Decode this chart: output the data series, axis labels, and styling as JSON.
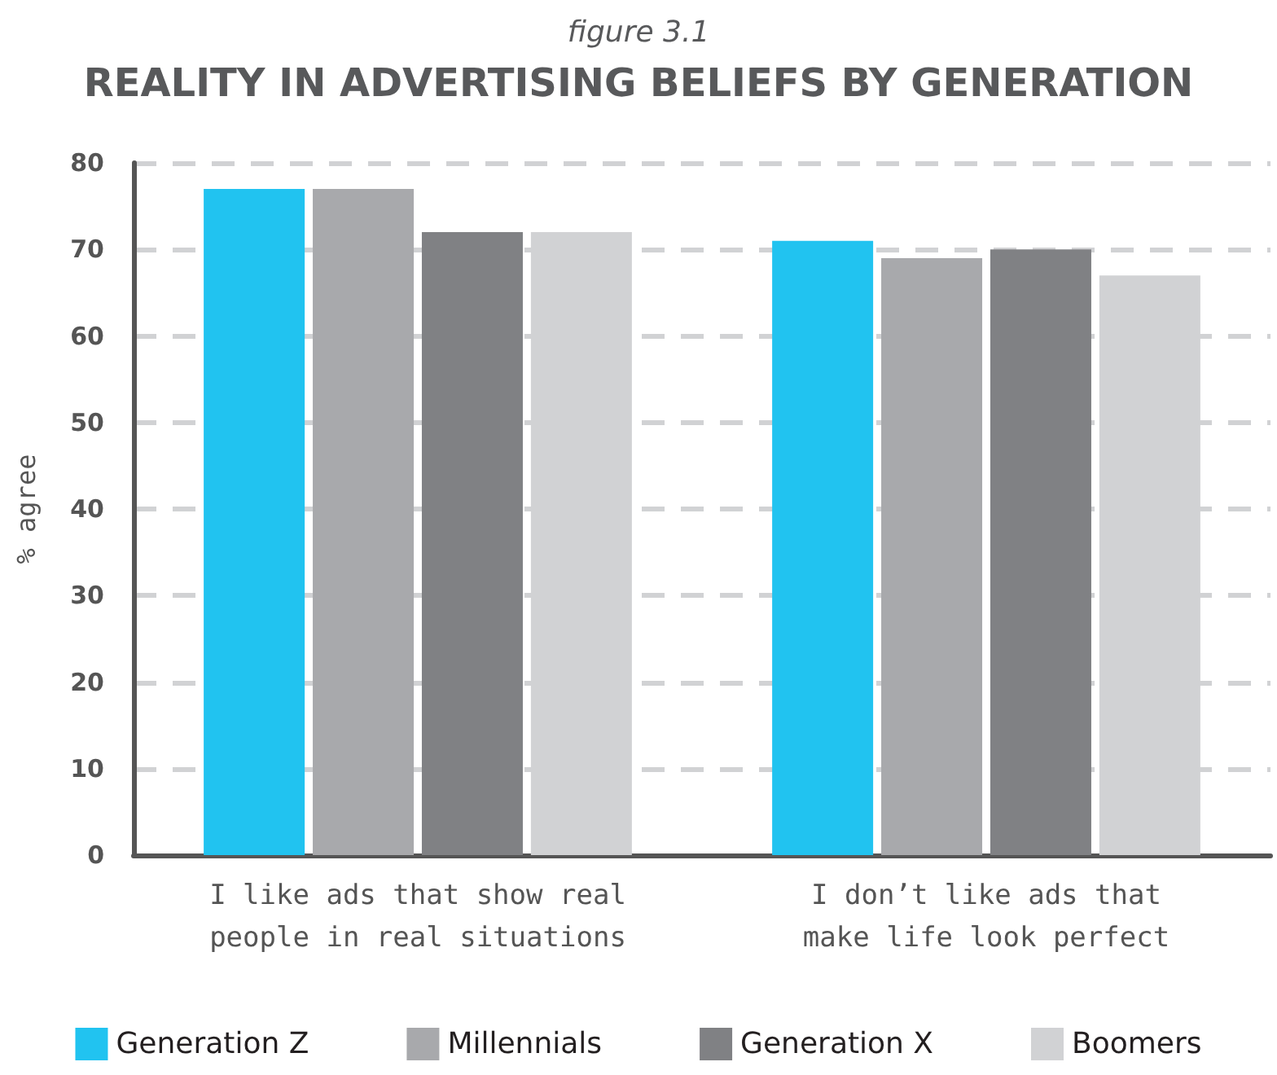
{
  "chart_data": {
    "type": "bar",
    "title": "REALITY IN ADVERTISING BELIEFS BY GENERATION",
    "subtitle": "figure 3.1",
    "ylabel": "% agree",
    "categories": [
      "I like ads that show real\npeople in real situations",
      "I don’t like ads that\nmake life look perfect"
    ],
    "series": [
      {
        "name": "Generation Z",
        "color": "#21c3f0",
        "values": [
          77,
          71
        ]
      },
      {
        "name": "Millennials",
        "color": "#a8a9ac",
        "values": [
          77,
          69
        ]
      },
      {
        "name": "Generation X",
        "color": "#808184",
        "values": [
          72,
          70
        ]
      },
      {
        "name": "Boomers",
        "color": "#d1d2d4",
        "values": [
          72,
          67
        ]
      }
    ],
    "ylim": [
      0,
      80
    ],
    "yticks": [
      0,
      10,
      20,
      30,
      40,
      50,
      60,
      70,
      80
    ],
    "grid": "y",
    "legend": "bottom"
  }
}
